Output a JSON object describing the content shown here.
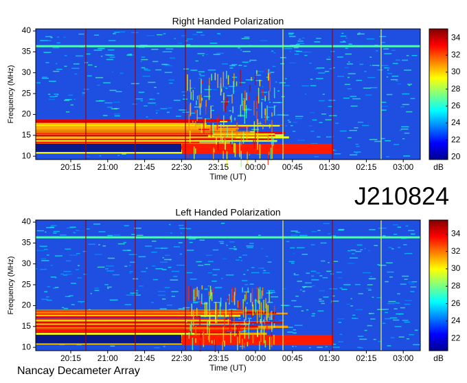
{
  "title": "J210824",
  "footer": "Nancay Decameter Array",
  "chart_data": [
    {
      "type": "heatmap",
      "title": "Right Handed Polarization",
      "xlabel": "Time (UT)",
      "ylabel": "Frequency (MHz)",
      "categories": [
        "20:15",
        "21:00",
        "21:45",
        "22:30",
        "23:15",
        "00:00",
        "00:45",
        "01:30",
        "02:15",
        "03:00"
      ],
      "ylim": [
        9.2,
        40.5
      ],
      "yticks": [
        10,
        15,
        20,
        25,
        30,
        35,
        40
      ],
      "colorbar": {
        "label": "dB",
        "lim": [
          19.7,
          35.1
        ],
        "ticks": [
          20,
          22,
          24,
          26,
          28,
          30,
          32,
          34
        ]
      }
    },
    {
      "type": "heatmap",
      "title": "Left Handed Polarization",
      "xlabel": "Time (UT)",
      "ylabel": "Frequency (MHz)",
      "categories": [
        "20:15",
        "21:00",
        "21:45",
        "22:30",
        "23:15",
        "00:00",
        "00:45",
        "01:30",
        "02:15",
        "03:00"
      ],
      "ylim": [
        9.2,
        40.5
      ],
      "yticks": [
        10,
        15,
        20,
        25,
        30,
        35,
        40
      ],
      "colorbar": {
        "label": "dB",
        "lim": [
          20.6,
          35.6
        ],
        "ticks": [
          22,
          24,
          26,
          28,
          30,
          32,
          34
        ]
      }
    }
  ]
}
